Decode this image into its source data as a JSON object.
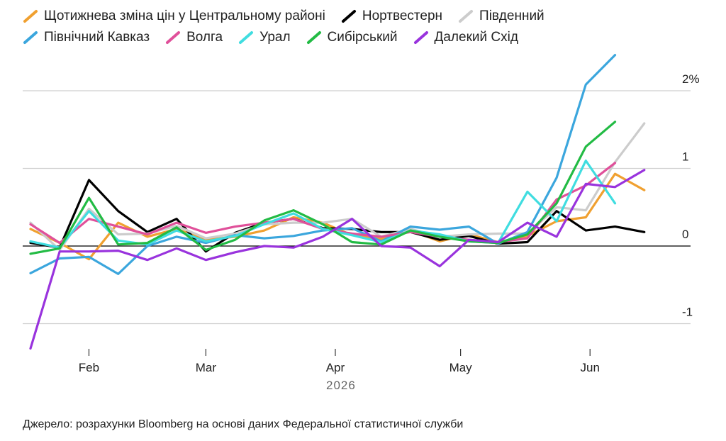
{
  "chart_data": {
    "type": "line",
    "title": "",
    "xlabel": "2026",
    "ylabel": "",
    "x": [
      "2026-01-22",
      "2026-01-29",
      "2026-02-05",
      "2026-02-12",
      "2026-02-19",
      "2026-02-26",
      "2026-03-05",
      "2026-03-12",
      "2026-03-19",
      "2026-03-26",
      "2026-04-02",
      "2026-04-09",
      "2026-04-16",
      "2026-04-23",
      "2026-04-30",
      "2026-05-07",
      "2026-05-14",
      "2026-05-21",
      "2026-05-28",
      "2026-06-04",
      "2026-06-11",
      "2026-06-18",
      "2026-06-25"
    ],
    "x_ticks": [
      {
        "date": "2026-02-05",
        "label": "Feb"
      },
      {
        "date": "2026-03-05",
        "label": "Mar"
      },
      {
        "date": "2026-04-05",
        "label": "Apr"
      },
      {
        "date": "2026-05-05",
        "label": "May"
      },
      {
        "date": "2026-06-05",
        "label": "Jun"
      }
    ],
    "y_ticks": [
      {
        "value": 2,
        "label": "2%"
      },
      {
        "value": 1,
        "label": "1"
      },
      {
        "value": 0,
        "label": "0"
      },
      {
        "value": -1,
        "label": "-1"
      }
    ],
    "ylim": [
      -1.4,
      2.5
    ],
    "grid": true,
    "legend_placement": "top-left",
    "series": [
      {
        "name": "Щотижнева зміна цін у Центральному районі",
        "color": "#f0a030",
        "values": [
          0.22,
          0.04,
          -0.17,
          0.3,
          0.12,
          0.22,
          0.08,
          0.12,
          0.2,
          0.37,
          0.3,
          0.14,
          0.09,
          0.2,
          0.06,
          0.15,
          0.05,
          0.13,
          0.32,
          0.37,
          0.93,
          0.72,
          null
        ]
      },
      {
        "name": "Нортвестерн",
        "color": "#000000",
        "values": [
          0.04,
          -0.02,
          0.85,
          0.45,
          0.18,
          0.35,
          -0.07,
          0.17,
          0.3,
          0.35,
          0.23,
          0.22,
          0.18,
          0.18,
          0.08,
          0.13,
          0.03,
          0.05,
          0.45,
          0.2,
          0.25,
          0.18,
          null
        ]
      },
      {
        "name": "Південний",
        "color": "#cccccc",
        "values": [
          0.3,
          -0.05,
          0.48,
          0.15,
          0.16,
          0.26,
          0.1,
          0.16,
          0.28,
          0.3,
          0.3,
          0.35,
          0.12,
          0.22,
          0.12,
          0.15,
          0.16,
          0.16,
          0.5,
          0.46,
          1.08,
          1.58,
          null
        ]
      },
      {
        "name": "Північний Кавказ",
        "color": "#3ba6dd",
        "values": [
          -0.35,
          -0.16,
          -0.14,
          -0.36,
          0.0,
          0.12,
          0.04,
          0.14,
          0.1,
          0.13,
          0.2,
          0.23,
          0.06,
          0.25,
          0.21,
          0.25,
          0.03,
          0.18,
          0.88,
          2.08,
          2.46,
          null,
          null
        ]
      },
      {
        "name": "Волга",
        "color": "#e0509a",
        "values": [
          0.28,
          0.04,
          0.35,
          0.25,
          0.15,
          0.3,
          0.17,
          0.25,
          0.3,
          0.35,
          0.22,
          0.16,
          0.12,
          0.18,
          0.12,
          0.08,
          0.05,
          0.1,
          0.6,
          0.78,
          1.07,
          null,
          null
        ]
      },
      {
        "name": "Урал",
        "color": "#40dde0",
        "values": [
          0.06,
          -0.02,
          0.45,
          0.07,
          0.02,
          0.2,
          0.06,
          0.13,
          0.28,
          0.42,
          0.22,
          0.14,
          0.05,
          0.2,
          0.15,
          0.06,
          0.04,
          0.7,
          0.32,
          1.1,
          0.55,
          null,
          null
        ]
      },
      {
        "name": "Сибірський",
        "color": "#22bb44",
        "values": [
          -0.1,
          -0.03,
          0.62,
          0.02,
          0.04,
          0.24,
          -0.05,
          0.08,
          0.33,
          0.46,
          0.28,
          0.05,
          0.02,
          0.2,
          0.12,
          0.06,
          0.04,
          0.15,
          0.55,
          1.28,
          1.6,
          null,
          null
        ]
      },
      {
        "name": "Далекий Схід",
        "color": "#9933dd",
        "values": [
          -1.32,
          -0.07,
          -0.07,
          -0.06,
          -0.18,
          -0.03,
          -0.18,
          -0.08,
          0.0,
          -0.02,
          0.12,
          0.35,
          0.0,
          -0.02,
          -0.26,
          0.08,
          0.05,
          0.3,
          0.12,
          0.8,
          0.76,
          0.98,
          null
        ]
      }
    ],
    "source": "Джерело: розрахунки Bloomberg на основі даних Федеральної статистичної служби"
  }
}
